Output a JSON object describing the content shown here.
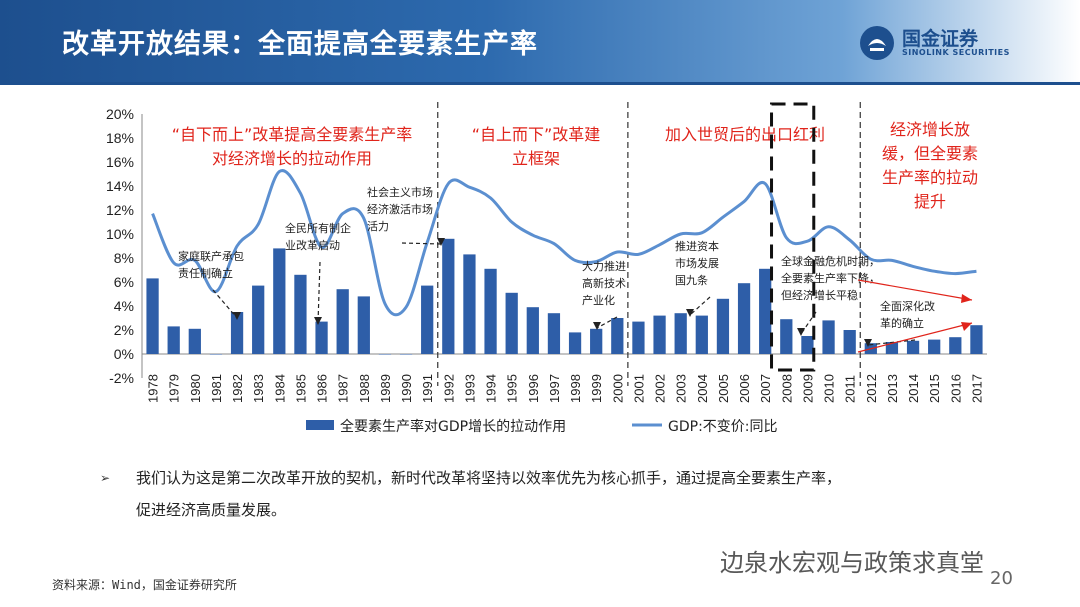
{
  "header": {
    "title": "改革开放结果：全面提高全要素生产率",
    "logo_name": "国金证券",
    "logo_sub": "SINOLINK SECURITIES"
  },
  "chart_data": {
    "type": "bar+line",
    "categories": [
      "1978",
      "1979",
      "1980",
      "1981",
      "1982",
      "1983",
      "1984",
      "1985",
      "1986",
      "1987",
      "1988",
      "1989",
      "1990",
      "1991",
      "1992",
      "1993",
      "1994",
      "1995",
      "1996",
      "1997",
      "1998",
      "1999",
      "2000",
      "2001",
      "2002",
      "2003",
      "2004",
      "2005",
      "2006",
      "2007",
      "2008",
      "2009",
      "2010",
      "2011",
      "2012",
      "2013",
      "2014",
      "2015",
      "2016",
      "2017"
    ],
    "ylim": [
      -0.02,
      0.2
    ],
    "yticks": [
      "-2%",
      "0%",
      "2%",
      "4%",
      "6%",
      "8%",
      "10%",
      "12%",
      "14%",
      "16%",
      "18%",
      "20%"
    ],
    "series": [
      {
        "name": "全要素生产率对GDP增长的拉动作用",
        "kind": "bar",
        "color": "#2e5ea8",
        "values": [
          0.063,
          0.023,
          0.021,
          0.0,
          0.035,
          0.057,
          0.088,
          0.066,
          0.027,
          0.054,
          0.048,
          0.0,
          0.0,
          0.057,
          0.096,
          0.083,
          0.071,
          0.051,
          0.039,
          0.034,
          0.018,
          0.021,
          0.03,
          0.027,
          0.032,
          0.034,
          0.032,
          0.046,
          0.059,
          0.071,
          0.029,
          0.015,
          0.028,
          0.02,
          0.009,
          0.01,
          0.011,
          0.012,
          0.014,
          0.024
        ]
      },
      {
        "name": "GDP:不变价:同比",
        "kind": "line",
        "color": "#5b8fd0",
        "values": [
          0.117,
          0.076,
          0.078,
          0.052,
          0.09,
          0.108,
          0.152,
          0.134,
          0.089,
          0.117,
          0.113,
          0.042,
          0.039,
          0.093,
          0.142,
          0.139,
          0.13,
          0.11,
          0.099,
          0.092,
          0.078,
          0.077,
          0.085,
          0.083,
          0.091,
          0.1,
          0.101,
          0.114,
          0.127,
          0.142,
          0.097,
          0.094,
          0.106,
          0.095,
          0.079,
          0.078,
          0.073,
          0.069,
          0.067,
          0.069
        ]
      }
    ],
    "period_labels": [
      {
        "text": [
          "“自下而上”改革提高全要素生产率",
          "对经济增长的拉动作用"
        ]
      },
      {
        "text": [
          "“自上而下”改革建",
          "立框架"
        ]
      },
      {
        "text": [
          "加入世贸后的出口红利"
        ]
      },
      {
        "text": [
          "经济增长放",
          "缓，但全要素",
          "生产率的拉动",
          "提升"
        ]
      }
    ],
    "annotations": [
      {
        "text": [
          "家庭联产承包",
          "责任制确立"
        ]
      },
      {
        "text": [
          "全民所有制企",
          "业改革启动"
        ]
      },
      {
        "text": [
          "社会主义市场",
          "经济激活市场",
          "活力"
        ]
      },
      {
        "text": [
          "大力推进",
          "高新技术",
          "产业化"
        ]
      },
      {
        "text": [
          "推进资本",
          "市场发展",
          "国九条"
        ]
      },
      {
        "text": [
          "全球金融危机时期，",
          "全要素生产率下降，",
          "但经济增长平稳"
        ]
      },
      {
        "text": [
          "全面深化改",
          "革的确立"
        ]
      }
    ],
    "colors": {
      "bar": "#2e5ea8",
      "line": "#5b8fd0",
      "period_text": "#e0241b",
      "arrow": "#e0241b"
    }
  },
  "note": {
    "bullet": "➢",
    "lines": [
      "我们认为这是第二次改革开放的契机，新时代改革将坚持以效率优先为核心抓手，通过提高全要素生产率，",
      "促进经济高质量发展。"
    ]
  },
  "source": "资料来源：Wind，国金证券研究所",
  "watermark": "边泉水宏观与政策求真堂",
  "page_number": "20"
}
